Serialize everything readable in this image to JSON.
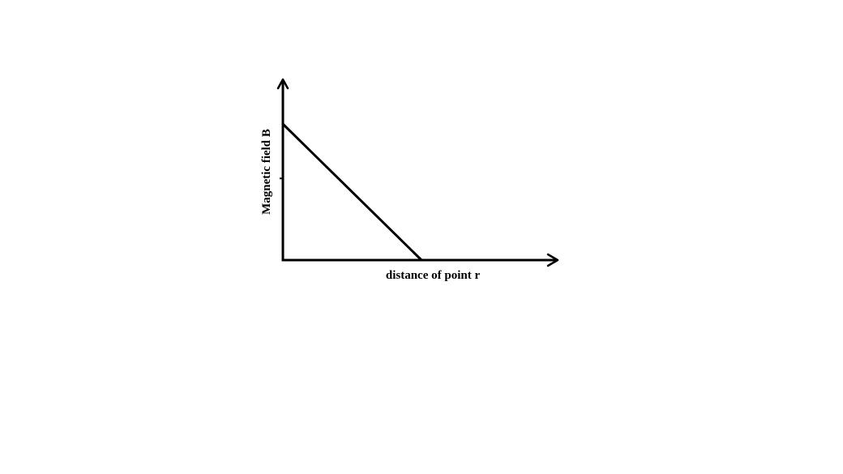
{
  "chart_data": {
    "type": "line",
    "title": "",
    "xlabel": "distance of point r",
    "ylabel": "Magnetic field B",
    "grid": false,
    "legend": "none",
    "series": [
      {
        "x": [
          0,
          1
        ],
        "y": [
          1,
          0
        ]
      }
    ],
    "xlim": [
      0,
      2
    ],
    "ylim": [
      0,
      1.3
    ],
    "yticks": [
      0.6
    ],
    "colors": {
      "line": "#000000",
      "axes": "#000000",
      "background": "#ffffff"
    }
  }
}
